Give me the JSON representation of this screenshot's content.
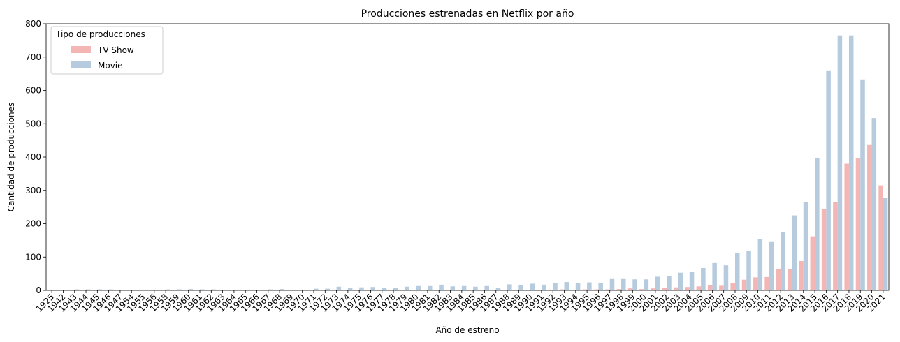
{
  "chart_data": {
    "type": "bar",
    "title": "Producciones estrenadas en Netflix por año",
    "xlabel": "Año de estreno",
    "ylabel": "Cantidad de producciones",
    "ylim": [
      0,
      800
    ],
    "yticks": [
      0,
      100,
      200,
      300,
      400,
      500,
      600,
      700,
      800
    ],
    "grid": false,
    "legend": {
      "title": "Tipo de producciones",
      "placement": "top-left"
    },
    "categories": [
      "1925",
      "1942",
      "1943",
      "1944",
      "1945",
      "1946",
      "1947",
      "1954",
      "1955",
      "1956",
      "1958",
      "1959",
      "1960",
      "1961",
      "1962",
      "1963",
      "1964",
      "1965",
      "1966",
      "1967",
      "1968",
      "1969",
      "1970",
      "1971",
      "1972",
      "1973",
      "1974",
      "1975",
      "1976",
      "1977",
      "1978",
      "1979",
      "1980",
      "1981",
      "1982",
      "1983",
      "1984",
      "1985",
      "1986",
      "1987",
      "1988",
      "1989",
      "1990",
      "1991",
      "1992",
      "1993",
      "1994",
      "1995",
      "1996",
      "1997",
      "1998",
      "1999",
      "2000",
      "2001",
      "2002",
      "2003",
      "2004",
      "2005",
      "2006",
      "2007",
      "2008",
      "2009",
      "2010",
      "2011",
      "2012",
      "2013",
      "2014",
      "2015",
      "2016",
      "2017",
      "2018",
      "2019",
      "2020",
      "2021"
    ],
    "series": [
      {
        "name": "TV Show",
        "color": "#f4b6b4",
        "values": [
          1,
          0,
          0,
          1,
          1,
          1,
          0,
          0,
          0,
          0,
          0,
          0,
          0,
          0,
          0,
          1,
          0,
          0,
          0,
          1,
          1,
          0,
          0,
          0,
          1,
          1,
          0,
          0,
          0,
          0,
          0,
          0,
          0,
          0,
          0,
          0,
          0,
          0,
          0,
          0,
          0,
          0,
          0,
          1,
          1,
          3,
          2,
          3,
          3,
          3,
          4,
          6,
          4,
          6,
          8,
          9,
          10,
          12,
          15,
          14,
          23,
          32,
          39,
          40,
          64,
          63,
          88,
          162,
          244,
          265,
          380,
          397,
          436,
          315
        ]
      },
      {
        "name": "Movie",
        "color": "#b6cbde",
        "values": [
          0,
          2,
          3,
          3,
          3,
          3,
          1,
          1,
          2,
          2,
          3,
          3,
          4,
          3,
          3,
          2,
          2,
          2,
          1,
          3,
          4,
          2,
          1,
          5,
          5,
          11,
          7,
          9,
          10,
          7,
          8,
          11,
          13,
          13,
          17,
          12,
          13,
          11,
          13,
          8,
          18,
          15,
          20,
          17,
          22,
          25,
          22,
          24,
          23,
          34,
          34,
          33,
          33,
          41,
          44,
          53,
          55,
          67,
          82,
          75,
          113,
          118,
          154,
          145,
          174,
          225,
          264,
          398,
          658,
          765,
          765,
          633,
          517,
          277
        ]
      }
    ]
  }
}
